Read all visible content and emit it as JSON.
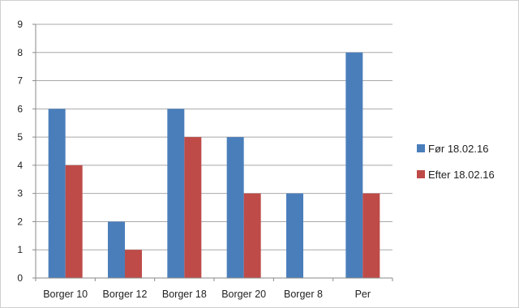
{
  "chart_data": {
    "type": "bar",
    "categories": [
      "Borger 10",
      "Borger 12",
      "Borger 18",
      "Borger 20",
      "Borger 8",
      "Per"
    ],
    "series": [
      {
        "name": "Før 18.02.16",
        "values": [
          6,
          2,
          6,
          5,
          3,
          8
        ],
        "color": "#4a7ebb"
      },
      {
        "name": "Efter 18.02.16",
        "values": [
          4,
          1,
          5,
          3,
          0,
          3
        ],
        "color": "#be4b48"
      }
    ],
    "ylim": [
      0,
      9
    ],
    "yticks": [
      0,
      1,
      2,
      3,
      4,
      5,
      6,
      7,
      8,
      9
    ],
    "grid": true,
    "legend_position": "right",
    "title": "",
    "xlabel": "",
    "ylabel": ""
  }
}
